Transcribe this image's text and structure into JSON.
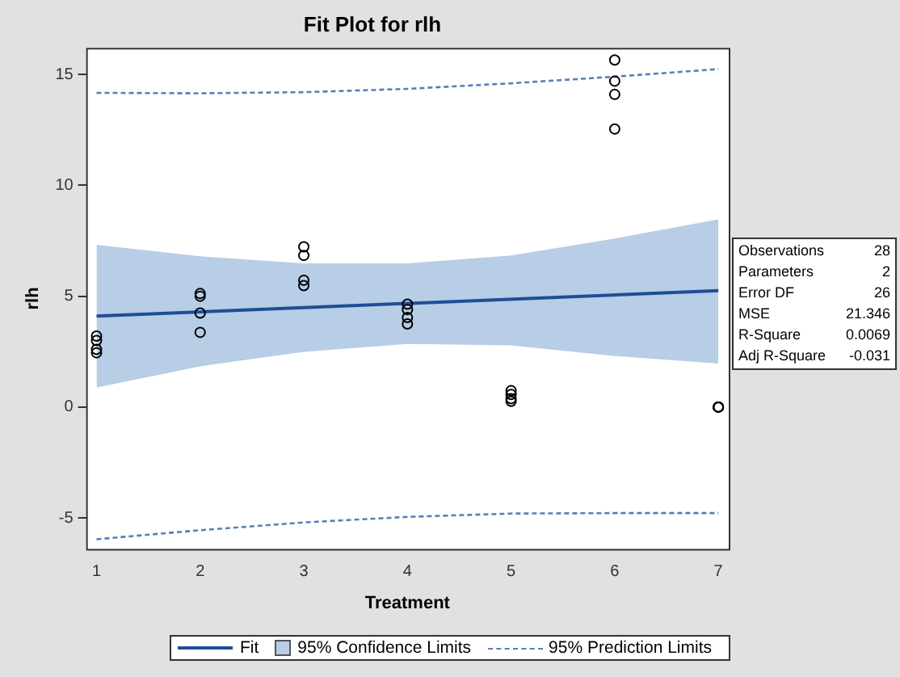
{
  "chart_data": {
    "type": "scatter",
    "title": "Fit Plot for rlh",
    "xlabel": "Treatment",
    "ylabel": "rlh",
    "xlim": [
      0.9,
      7.1
    ],
    "xticks": [
      1,
      2,
      3,
      4,
      5,
      6,
      7
    ],
    "ylim": [
      -6.4,
      16.2
    ],
    "yticks": [
      -5,
      0,
      5,
      10,
      15
    ],
    "grid": false,
    "legend": "bottom",
    "series": [
      {
        "type": "line",
        "name": "95% Confidence Limits",
        "color": "#b8cde6",
        "line_style": "solid",
        "x": [
          1,
          2,
          3,
          4,
          5,
          6,
          7
        ],
        "values": [
          null,
          null,
          null,
          null,
          null,
          null,
          null
        ],
        "lower": [
          0.88,
          1.84,
          2.49,
          2.85,
          2.78,
          2.3,
          1.96
        ],
        "upper": [
          7.32,
          6.8,
          6.48,
          6.48,
          6.84,
          7.6,
          8.47
        ]
      },
      {
        "type": "line",
        "name": "95% Prediction Limits",
        "color": "#5a7fb5",
        "line_style": "dashed",
        "x": [
          1,
          2,
          3,
          4,
          5,
          6,
          7
        ],
        "values": [
          14.17,
          14.15,
          14.2,
          14.35,
          14.6,
          14.9,
          15.24
        ]
      },
      {
        "type": "line",
        "color": "#5a7fb5",
        "line_style": "dashed",
        "x": [
          1,
          2,
          3,
          4,
          5,
          6,
          7
        ],
        "values": [
          -5.96,
          -5.55,
          -5.2,
          -4.95,
          -4.8,
          -4.78,
          -4.78
        ]
      },
      {
        "type": "line",
        "name": "Fit",
        "color": "#1f4e97",
        "line_style": "solid",
        "x": [
          1,
          7
        ],
        "values": [
          4.1,
          5.25
        ]
      },
      {
        "type": "scatter",
        "color": "#000000",
        "marker": "circle",
        "x": [
          1,
          1,
          1,
          1,
          2,
          2,
          2,
          2,
          3,
          3,
          3,
          3,
          4,
          4,
          4,
          4,
          5,
          5,
          5,
          5,
          6,
          6,
          6,
          6,
          7,
          7,
          7,
          7
        ],
        "values": [
          3.2,
          3.0,
          2.6,
          2.45,
          5.12,
          5.0,
          4.24,
          3.37,
          7.23,
          6.84,
          5.72,
          5.48,
          4.64,
          4.4,
          4.04,
          3.75,
          0.74,
          0.57,
          0.38,
          0.26,
          15.65,
          14.7,
          14.1,
          12.54,
          0,
          0,
          0,
          0
        ]
      }
    ],
    "annotations": [
      "Observations 28",
      "Parameters 2",
      "Error DF 26",
      "MSE 21.346",
      "R-Square 0.0069",
      "Adj R-Square -0.031"
    ]
  }
}
